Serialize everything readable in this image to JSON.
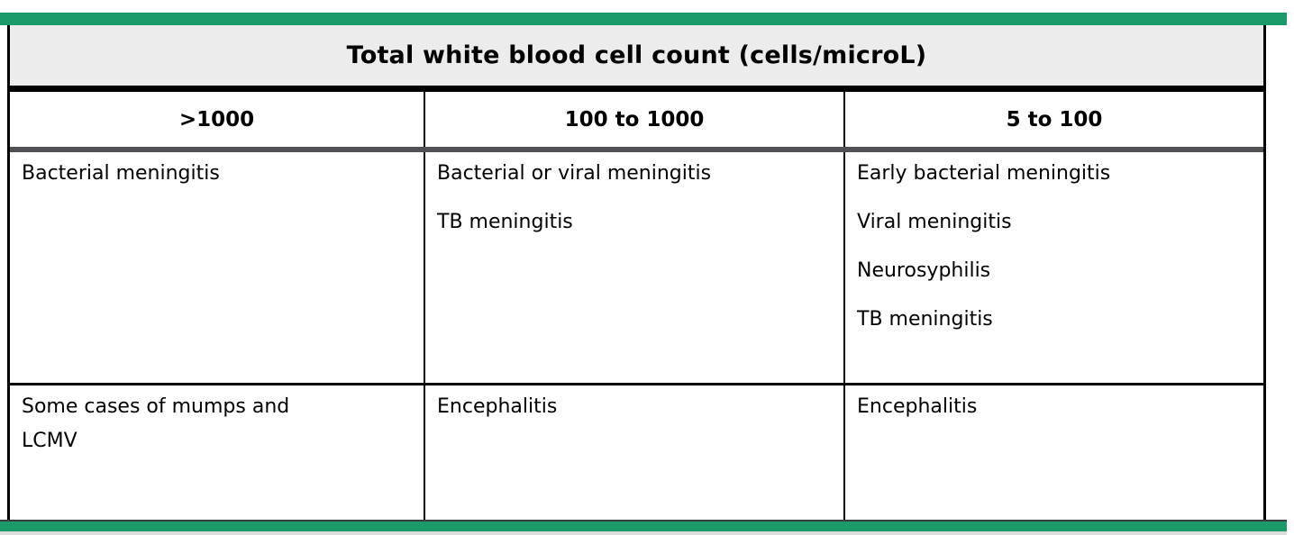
{
  "theme": {
    "accent_green": "#1a9a68",
    "title_band_bg": "#ececec",
    "header_divider_gray": "#515155",
    "border_black": "#000000"
  },
  "table": {
    "title": "Total white blood cell count (cells/microL)",
    "columns": [
      ">1000",
      "100 to 1000",
      "5 to 100"
    ],
    "rows": [
      {
        "cells": [
          {
            "items": [
              "Bacterial meningitis"
            ]
          },
          {
            "items": [
              "Bacterial or viral meningitis",
              "TB meningitis"
            ]
          },
          {
            "items": [
              "Early bacterial meningitis",
              "Viral meningitis",
              "Neurosyphilis",
              "TB meningitis"
            ]
          }
        ]
      },
      {
        "cells": [
          {
            "items": [
              "Some cases of mumps and LCMV"
            ]
          },
          {
            "items": [
              "Encephalitis"
            ]
          },
          {
            "items": [
              "Encephalitis"
            ]
          }
        ]
      }
    ]
  }
}
